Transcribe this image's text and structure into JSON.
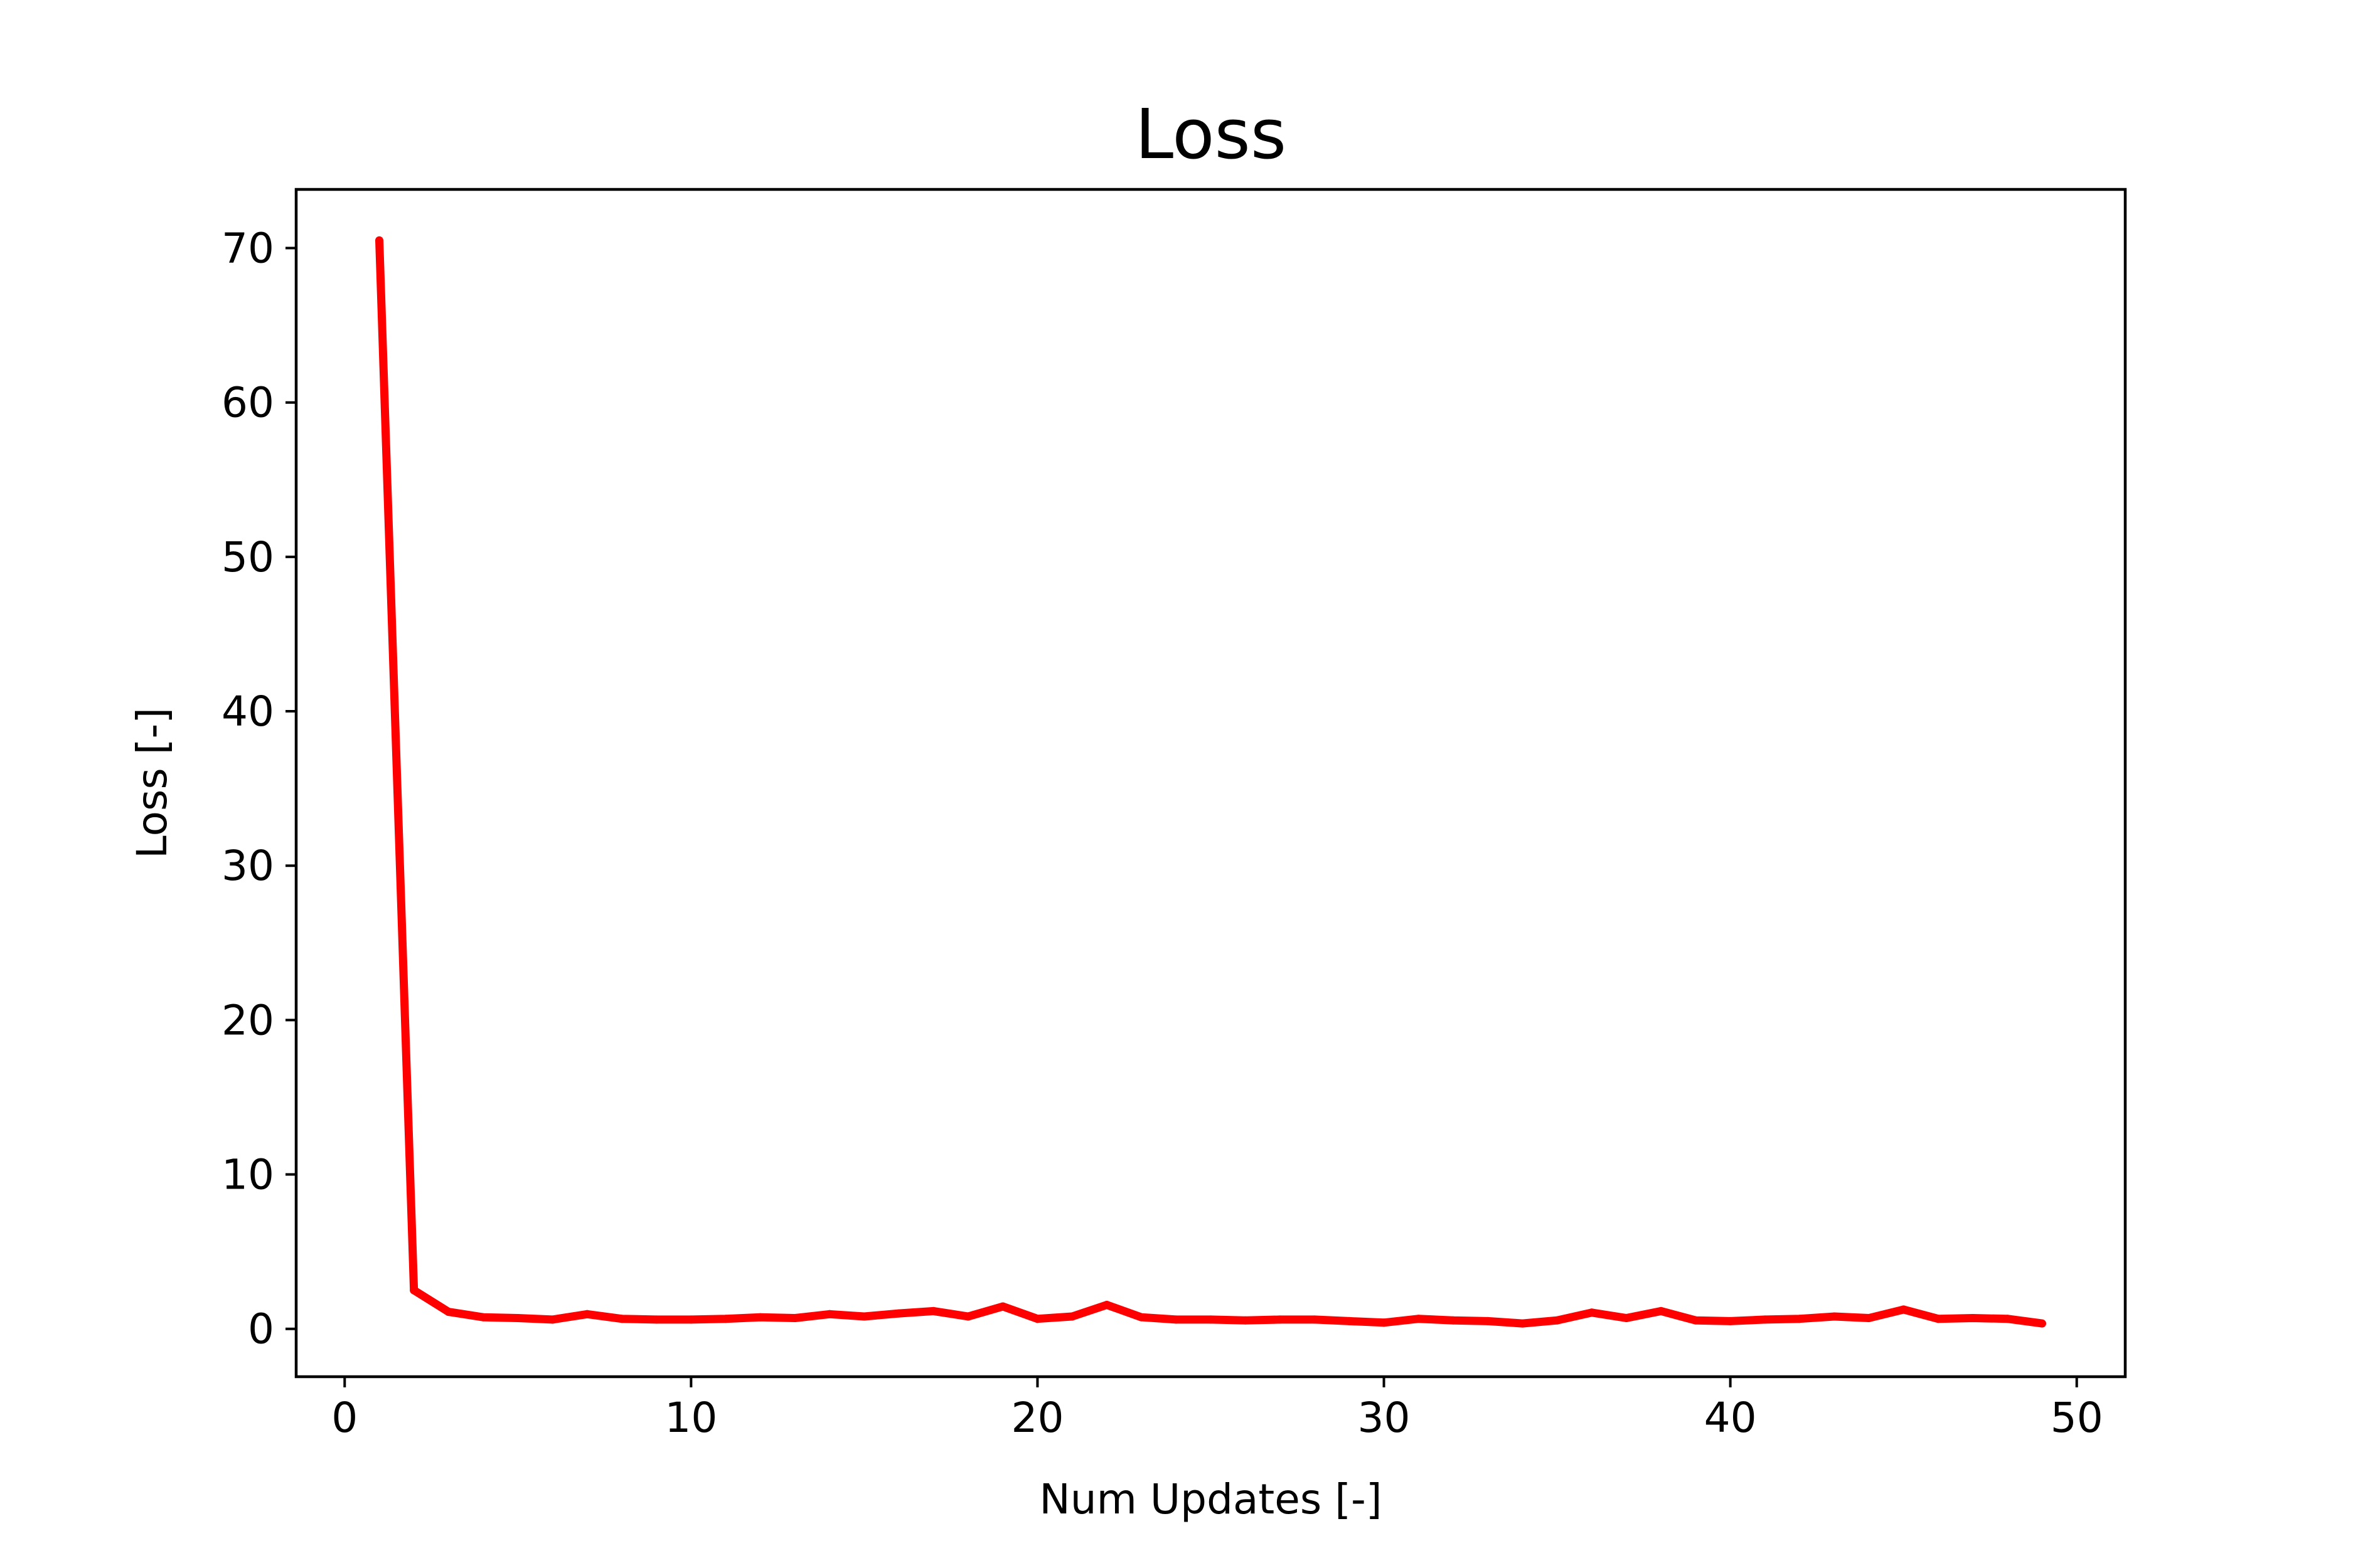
{
  "chart_data": {
    "type": "line",
    "title": "Loss",
    "xlabel": "Num Updates [-]",
    "ylabel": "Loss [-]",
    "xlim": [
      -1.4,
      51.4
    ],
    "ylim": [
      -3.1,
      73.8
    ],
    "xticks": [
      0,
      10,
      20,
      30,
      40,
      50
    ],
    "yticks": [
      0,
      10,
      20,
      30,
      40,
      50,
      60,
      70
    ],
    "grid": false,
    "legend": "none",
    "series": [
      {
        "color": "#ff0000",
        "x": [
          1,
          2,
          3,
          4,
          5,
          6,
          7,
          8,
          9,
          10,
          11,
          12,
          13,
          14,
          15,
          16,
          17,
          18,
          19,
          20,
          21,
          22,
          23,
          24,
          25,
          26,
          27,
          28,
          29,
          30,
          31,
          32,
          33,
          34,
          35,
          36,
          37,
          38,
          39,
          40,
          41,
          42,
          43,
          44,
          45,
          46,
          47,
          48,
          49
        ],
        "values": [
          70.5,
          2.5,
          1.1,
          0.75,
          0.7,
          0.6,
          0.95,
          0.65,
          0.6,
          0.6,
          0.65,
          0.75,
          0.7,
          0.95,
          0.8,
          1.0,
          1.15,
          0.8,
          1.45,
          0.65,
          0.8,
          1.55,
          0.75,
          0.6,
          0.6,
          0.55,
          0.6,
          0.6,
          0.5,
          0.4,
          0.65,
          0.55,
          0.5,
          0.35,
          0.55,
          1.05,
          0.7,
          1.15,
          0.55,
          0.5,
          0.6,
          0.65,
          0.8,
          0.7,
          1.25,
          0.65,
          0.7,
          0.65,
          0.35
        ]
      }
    ]
  }
}
